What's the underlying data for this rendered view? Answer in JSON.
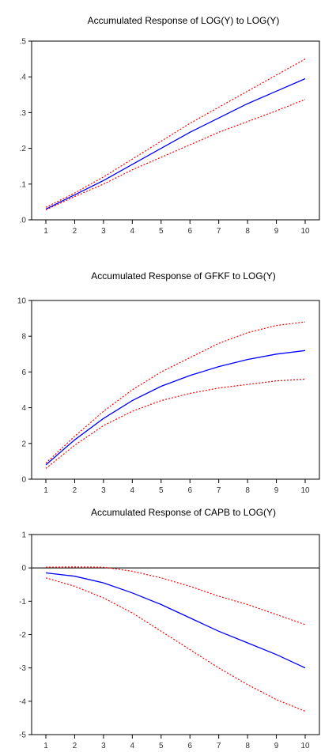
{
  "chart_data": [
    {
      "type": "line",
      "title": "Accumulated Response of LOG(Y) to LOG(Y)",
      "x": [
        1,
        2,
        3,
        4,
        5,
        6,
        7,
        8,
        9,
        10
      ],
      "ylim": [
        0,
        0.5
      ],
      "yticks": [
        0,
        0.1,
        0.2,
        0.3,
        0.4,
        0.5
      ],
      "ytick_labels": [
        ".0",
        ".1",
        ".2",
        ".3",
        ".4",
        ".5"
      ],
      "zero_line": false,
      "series": [
        {
          "role": "response",
          "color": "#0000ff",
          "style": "solid",
          "values": [
            0.03,
            0.07,
            0.11,
            0.155,
            0.2,
            0.245,
            0.285,
            0.325,
            0.36,
            0.395
          ]
        },
        {
          "role": "upper",
          "color": "#ff0000",
          "style": "dashed",
          "values": [
            0.035,
            0.075,
            0.12,
            0.17,
            0.22,
            0.27,
            0.315,
            0.36,
            0.405,
            0.45
          ]
        },
        {
          "role": "lower",
          "color": "#ff0000",
          "style": "dashed",
          "values": [
            0.028,
            0.065,
            0.1,
            0.14,
            0.175,
            0.21,
            0.245,
            0.275,
            0.305,
            0.337
          ]
        }
      ]
    },
    {
      "type": "line",
      "title": "Accumulated Response of GFKF to LOG(Y)",
      "x": [
        1,
        2,
        3,
        4,
        5,
        6,
        7,
        8,
        9,
        10
      ],
      "ylim": [
        0,
        10
      ],
      "yticks": [
        0,
        2,
        4,
        6,
        8,
        10
      ],
      "ytick_labels": [
        "0",
        "2",
        "4",
        "6",
        "8",
        "10"
      ],
      "zero_line": false,
      "series": [
        {
          "role": "response",
          "color": "#0000ff",
          "style": "solid",
          "values": [
            0.8,
            2.2,
            3.4,
            4.4,
            5.2,
            5.8,
            6.3,
            6.7,
            7.0,
            7.2
          ]
        },
        {
          "role": "upper",
          "color": "#ff0000",
          "style": "dashed",
          "values": [
            0.9,
            2.4,
            3.8,
            5.0,
            6.0,
            6.8,
            7.6,
            8.2,
            8.6,
            8.8
          ]
        },
        {
          "role": "lower",
          "color": "#ff0000",
          "style": "dashed",
          "values": [
            0.6,
            1.9,
            3.0,
            3.8,
            4.4,
            4.8,
            5.1,
            5.3,
            5.5,
            5.6
          ]
        }
      ]
    },
    {
      "type": "line",
      "title": "Accumulated Response of CAPB to LOG(Y)",
      "x": [
        1,
        2,
        3,
        4,
        5,
        6,
        7,
        8,
        9,
        10
      ],
      "ylim": [
        -5,
        1
      ],
      "yticks": [
        -5,
        -4,
        -3,
        -2,
        -1,
        0,
        1
      ],
      "ytick_labels": [
        "-5",
        "-4",
        "-3",
        "-2",
        "-1",
        "0",
        "1"
      ],
      "zero_line": true,
      "series": [
        {
          "role": "response",
          "color": "#0000ff",
          "style": "solid",
          "values": [
            -0.15,
            -0.25,
            -0.45,
            -0.75,
            -1.1,
            -1.5,
            -1.9,
            -2.25,
            -2.6,
            -3.0
          ]
        },
        {
          "role": "upper",
          "color": "#ff0000",
          "style": "dashed",
          "values": [
            0.02,
            0.03,
            0.02,
            -0.1,
            -0.3,
            -0.55,
            -0.85,
            -1.1,
            -1.4,
            -1.7
          ]
        },
        {
          "role": "lower",
          "color": "#ff0000",
          "style": "dashed",
          "values": [
            -0.3,
            -0.55,
            -0.9,
            -1.35,
            -1.9,
            -2.45,
            -3.0,
            -3.5,
            -3.95,
            -4.3
          ]
        }
      ]
    }
  ]
}
